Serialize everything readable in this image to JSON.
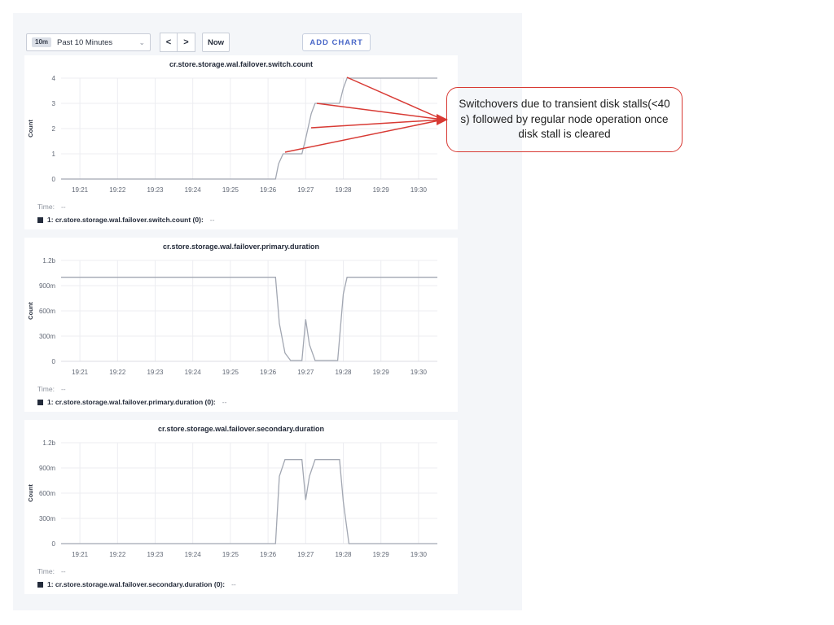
{
  "toolbar": {
    "range_badge": "10m",
    "range_label": "Past 10 Minutes",
    "prev_label": "<",
    "next_label": ">",
    "now_label": "Now",
    "add_chart_label": "ADD CHART"
  },
  "annotation": {
    "text": "Switchovers due to transient disk stalls(<40 s) followed by regular node operation once disk stall is cleared"
  },
  "colors": {
    "annotation_red": "#d83a34",
    "series_line": "#a2a7b2",
    "grid": "#ecedf1",
    "axis_text": "#606774",
    "panel_bg": "#f4f6f9",
    "accent_blue": "#4a68c8",
    "legend_swatch": "#232b3b"
  },
  "chart_data": [
    {
      "type": "line",
      "title": "cr.store.storage.wal.failover.switch.count",
      "ylabel": "Count",
      "xlim": [
        20.5,
        30.5
      ],
      "ylim": [
        0,
        4
      ],
      "yticks": [
        0,
        1,
        2,
        3,
        4
      ],
      "ytick_labels": [
        "0",
        "1",
        "2",
        "3",
        "4"
      ],
      "xticks": [
        21,
        22,
        23,
        24,
        25,
        26,
        27,
        28,
        29,
        30
      ],
      "xtick_labels": [
        "19:21",
        "19:22",
        "19:23",
        "19:24",
        "19:25",
        "19:26",
        "19:27",
        "19:28",
        "19:29",
        "19:30"
      ],
      "grid": true,
      "series": [
        {
          "name": "cr.store.storage.wal.failover.switch.count",
          "points": [
            [
              20.5,
              0
            ],
            [
              26.2,
              0
            ],
            [
              26.28,
              0.6
            ],
            [
              26.4,
              1
            ],
            [
              26.9,
              1
            ],
            [
              27.0,
              1.6
            ],
            [
              27.15,
              2.6
            ],
            [
              27.25,
              3
            ],
            [
              27.9,
              3
            ],
            [
              28.0,
              3.6
            ],
            [
              28.1,
              4
            ],
            [
              30.5,
              4
            ]
          ]
        }
      ],
      "time_label": "Time:",
      "time_value": "--",
      "legend_label": "1: cr.store.storage.wal.failover.switch.count (0):",
      "legend_value": "--"
    },
    {
      "type": "line",
      "title": "cr.store.storage.wal.failover.primary.duration",
      "ylabel": "Count",
      "xlim": [
        20.5,
        30.5
      ],
      "ylim": [
        0,
        1.2
      ],
      "yticks": [
        0,
        0.3,
        0.6,
        0.9,
        1.2
      ],
      "ytick_labels": [
        "0",
        "300m",
        "600m",
        "900m",
        "1.2b"
      ],
      "xticks": [
        21,
        22,
        23,
        24,
        25,
        26,
        27,
        28,
        29,
        30
      ],
      "xtick_labels": [
        "19:21",
        "19:22",
        "19:23",
        "19:24",
        "19:25",
        "19:26",
        "19:27",
        "19:28",
        "19:29",
        "19:30"
      ],
      "grid": true,
      "series": [
        {
          "name": "cr.store.storage.wal.failover.primary.duration",
          "points": [
            [
              20.5,
              1.0
            ],
            [
              26.2,
              1.0
            ],
            [
              26.3,
              0.45
            ],
            [
              26.45,
              0.1
            ],
            [
              26.6,
              0.01
            ],
            [
              26.9,
              0.01
            ],
            [
              27.0,
              0.5
            ],
            [
              27.1,
              0.2
            ],
            [
              27.25,
              0.01
            ],
            [
              27.85,
              0.01
            ],
            [
              28.0,
              0.8
            ],
            [
              28.1,
              1.0
            ],
            [
              30.5,
              1.0
            ]
          ]
        }
      ],
      "time_label": "Time:",
      "time_value": "--",
      "legend_label": "1: cr.store.storage.wal.failover.primary.duration (0):",
      "legend_value": "--"
    },
    {
      "type": "line",
      "title": "cr.store.storage.wal.failover.secondary.duration",
      "ylabel": "Count",
      "xlim": [
        20.5,
        30.5
      ],
      "ylim": [
        0,
        1.2
      ],
      "yticks": [
        0,
        0.3,
        0.6,
        0.9,
        1.2
      ],
      "ytick_labels": [
        "0",
        "300m",
        "600m",
        "900m",
        "1.2b"
      ],
      "xticks": [
        21,
        22,
        23,
        24,
        25,
        26,
        27,
        28,
        29,
        30
      ],
      "xtick_labels": [
        "19:21",
        "19:22",
        "19:23",
        "19:24",
        "19:25",
        "19:26",
        "19:27",
        "19:28",
        "19:29",
        "19:30"
      ],
      "grid": true,
      "series": [
        {
          "name": "cr.store.storage.wal.failover.secondary.duration",
          "points": [
            [
              20.5,
              0
            ],
            [
              26.2,
              0
            ],
            [
              26.3,
              0.8
            ],
            [
              26.45,
              1.0
            ],
            [
              26.9,
              1.0
            ],
            [
              27.0,
              0.52
            ],
            [
              27.1,
              0.8
            ],
            [
              27.25,
              1.0
            ],
            [
              27.9,
              1.0
            ],
            [
              28.0,
              0.5
            ],
            [
              28.15,
              0
            ],
            [
              30.5,
              0
            ]
          ]
        }
      ],
      "time_label": "Time:",
      "time_value": "--",
      "legend_label": "1: cr.store.storage.wal.failover.secondary.duration (0):",
      "legend_value": "--"
    }
  ]
}
